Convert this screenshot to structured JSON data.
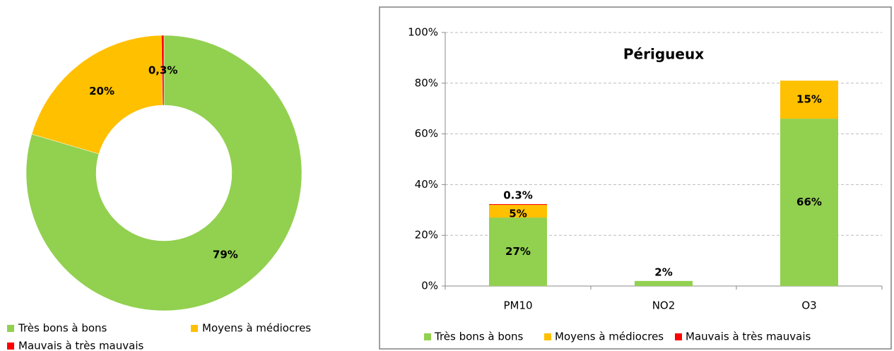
{
  "chart_data": [
    {
      "type": "donut",
      "categories": [
        "Très bons à bons",
        "Moyens à médiocres",
        "Mauvais à très mauvais"
      ],
      "values": [
        79,
        20,
        0.3
      ],
      "value_labels": [
        "79%",
        "20%",
        "0,3%"
      ],
      "colors": [
        "#92d050",
        "#ffc000",
        "#ff0000"
      ]
    },
    {
      "type": "bar",
      "stacked": true,
      "title": "Périgueux",
      "categories": [
        "PM10",
        "NO2",
        "O3"
      ],
      "series": [
        {
          "name": "Très bons à bons",
          "color": "#92d050",
          "values": [
            27,
            2,
            66
          ],
          "value_labels": [
            "27%",
            "2%",
            "66%"
          ]
        },
        {
          "name": "Moyens à médiocres",
          "color": "#ffc000",
          "values": [
            5,
            null,
            15
          ],
          "value_labels": [
            "5%",
            null,
            "15%"
          ]
        },
        {
          "name": "Mauvais à très mauvais",
          "color": "#ff0000",
          "values": [
            0.3,
            null,
            null
          ],
          "value_labels": [
            "0.3%",
            null,
            null
          ]
        }
      ],
      "ylim": [
        0,
        100
      ],
      "yticks": [
        {
          "value": 0,
          "label": "0%"
        },
        {
          "value": 20,
          "label": "20%"
        },
        {
          "value": 40,
          "label": "40%"
        },
        {
          "value": 60,
          "label": "60%"
        },
        {
          "value": 80,
          "label": "80%"
        },
        {
          "value": 100,
          "label": "100%"
        }
      ],
      "grid": true,
      "legend": "bottom"
    }
  ]
}
